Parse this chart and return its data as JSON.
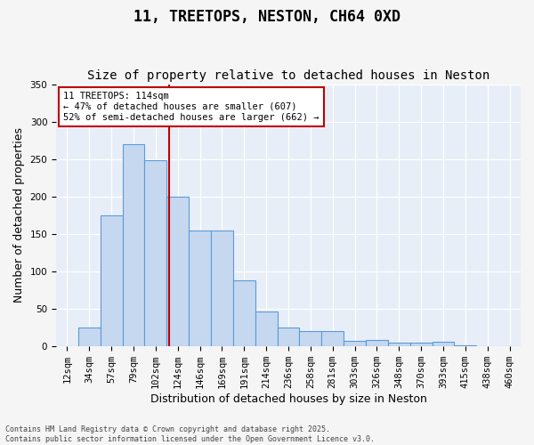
{
  "title": "11, TREETOPS, NESTON, CH64 0XD",
  "subtitle": "Size of property relative to detached houses in Neston",
  "xlabel": "Distribution of detached houses by size in Neston",
  "ylabel": "Number of detached properties",
  "footer_line1": "Contains HM Land Registry data © Crown copyright and database right 2025.",
  "footer_line2": "Contains public sector information licensed under the Open Government Licence v3.0.",
  "bar_labels": [
    "12sqm",
    "34sqm",
    "57sqm",
    "79sqm",
    "102sqm",
    "124sqm",
    "146sqm",
    "169sqm",
    "191sqm",
    "214sqm",
    "236sqm",
    "258sqm",
    "281sqm",
    "303sqm",
    "326sqm",
    "348sqm",
    "370sqm",
    "393sqm",
    "415sqm",
    "438sqm",
    "460sqm"
  ],
  "bar_values": [
    0,
    25,
    175,
    270,
    248,
    200,
    155,
    155,
    88,
    47,
    25,
    20,
    20,
    7,
    9,
    5,
    5,
    6,
    1,
    0,
    0
  ],
  "bar_color": "#c5d8f0",
  "bar_edge_color": "#5b9bd5",
  "ylim": [
    0,
    350
  ],
  "yticks": [
    0,
    50,
    100,
    150,
    200,
    250,
    300,
    350
  ],
  "vline_x": 4.6,
  "vline_color": "#c00000",
  "annotation_text": "11 TREETOPS: 114sqm\n← 47% of detached houses are smaller (607)\n52% of semi-detached houses are larger (662) →",
  "annotation_box_color": "#ffffff",
  "annotation_box_edge": "#c00000",
  "bg_color": "#e8eef8",
  "grid_color": "#ffffff",
  "fig_bg_color": "#f5f5f5",
  "title_fontsize": 12,
  "subtitle_fontsize": 10,
  "axis_label_fontsize": 9,
  "tick_fontsize": 7.5,
  "annotation_fontsize": 7.5
}
